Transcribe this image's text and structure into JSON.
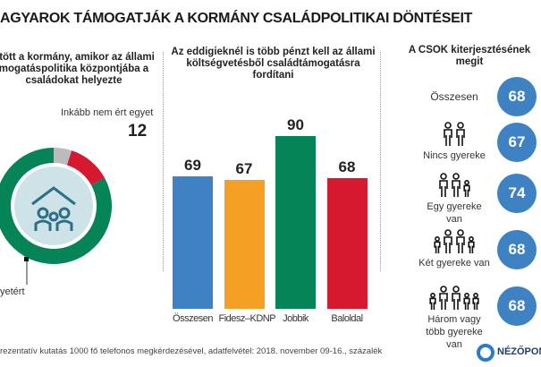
{
  "title": "AGYAROK TÁMOGATJÁK A KORMÁNY CSALÁDPOLITIKAI DÖNTÉSEIT",
  "left": {
    "question": [
      "ntött a kormány, amikor az állami",
      "mogatáspolitika központjába a",
      "családokat helyezte"
    ],
    "label_disagree": "Inkább nem ért egyet",
    "label_agree": "yetért"
  },
  "middle": {
    "question": [
      "Az eddigieknél is több pénzt kell az állami",
      "költségvetésből családtámogatásra",
      "fordítani"
    ]
  },
  "right": {
    "question": "A CSOK kiterjesztésének megit",
    "rows": [
      {
        "label": "Összesen",
        "value": "68"
      },
      {
        "label": "Nincs gyereke",
        "value": "67"
      },
      {
        "label": "Egy gyereke van",
        "value": "74"
      },
      {
        "label": "Két gyereke van",
        "value": "68"
      },
      {
        "label": "Három vagy több gyereke van",
        "value": "68"
      }
    ]
  },
  "footer": "rezentatív kutatás 1000 fő telefonos megkérdezésével, adatfelvétel: 2018. november 09-16., százalék",
  "logo": "NÉZŐPON",
  "chart_data": [
    {
      "type": "pie",
      "donut": true,
      "slices": [
        {
          "name": "Inkább nem ért egyet",
          "value": 12,
          "color": "#d7192f"
        },
        {
          "name": "yetért",
          "value": null,
          "color": "#058457"
        },
        {
          "name": "",
          "value": null,
          "color": "#bbbbbb"
        }
      ],
      "data_labels": [
        "12"
      ]
    },
    {
      "type": "bar",
      "categories": [
        "Összesen",
        "Fidesz–KDNP",
        "Jobbik",
        "Baloldal"
      ],
      "values": [
        69,
        67,
        90,
        68
      ],
      "colors": [
        "#3f82c4",
        "#f4a024",
        "#058457",
        "#d7192f"
      ]
    }
  ]
}
